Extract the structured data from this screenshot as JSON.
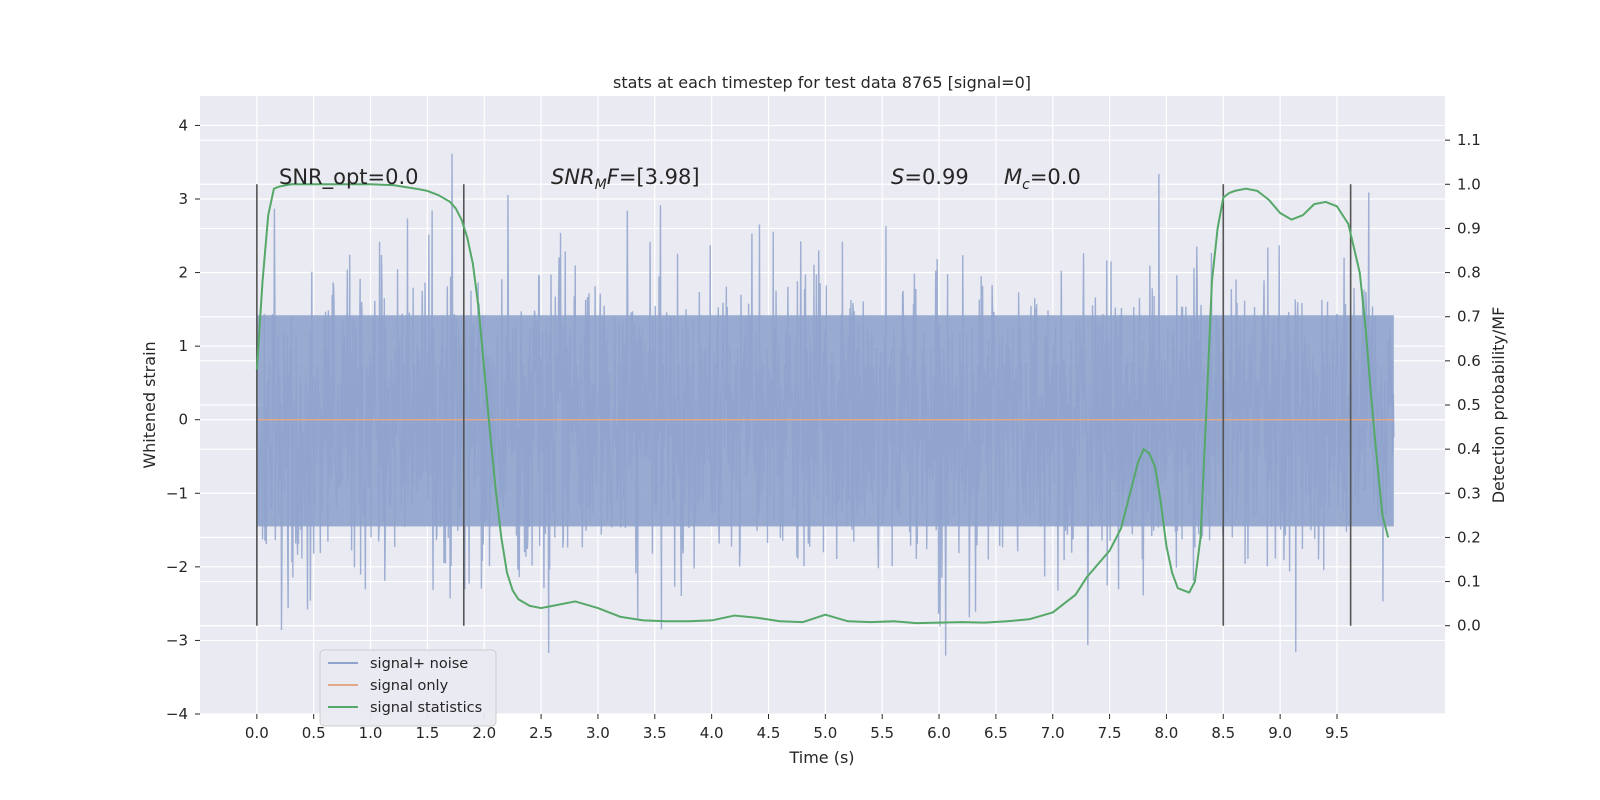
{
  "chart_data": {
    "type": "line",
    "title": "stats at each timestep for test data 8765 [signal=0]",
    "xlabel": "Time (s)",
    "ylabel": "Whitened strain",
    "y2label": "Detection probability/MF",
    "xlim": [
      -0.5,
      10.45
    ],
    "ylim": [
      -4.0,
      4.4
    ],
    "y2lim": [
      -0.2,
      1.2
    ],
    "x_ticks": [
      0.0,
      0.5,
      1.0,
      1.5,
      2.0,
      2.5,
      3.0,
      3.5,
      4.0,
      4.5,
      5.0,
      5.5,
      6.0,
      6.5,
      7.0,
      7.5,
      8.0,
      8.5,
      9.0,
      9.5
    ],
    "x_tick_labels": [
      "0.0",
      "0.5",
      "1.0",
      "1.5",
      "2.0",
      "2.5",
      "3.0",
      "3.5",
      "4.0",
      "4.5",
      "5.0",
      "5.5",
      "6.0",
      "6.5",
      "7.0",
      "7.5",
      "8.0",
      "8.5",
      "9.0",
      "9.5"
    ],
    "y_ticks": [
      -4,
      -3,
      -2,
      -1,
      0,
      1,
      2,
      3,
      4
    ],
    "y_tick_labels": [
      "−4",
      "−3",
      "−2",
      "−1",
      "0",
      "1",
      "2",
      "3",
      "4"
    ],
    "y2_ticks": [
      0.0,
      0.1,
      0.2,
      0.3,
      0.4,
      0.5,
      0.6,
      0.7,
      0.8,
      0.9,
      1.0,
      1.1
    ],
    "y2_tick_labels": [
      "0.0",
      "0.1",
      "0.2",
      "0.3",
      "0.4",
      "0.5",
      "0.6",
      "0.7",
      "0.8",
      "0.9",
      "1.0",
      "1.1"
    ],
    "grid": true,
    "legend": {
      "placement": "lower-left",
      "entries": [
        {
          "label": "signal+ noise",
          "color": "#8fa3cc"
        },
        {
          "label": "signal only",
          "color": "#e2a88a"
        },
        {
          "label": "signal statistics",
          "color": "#55a868"
        }
      ]
    },
    "annotations": {
      "snr_opt": "SNR_opt=0.0",
      "snr_mf_sym": "SNR",
      "snr_mf_sub": "M",
      "snr_mf_sym2": "F",
      "snr_mf_val": "=[3.98]",
      "s_sym": "S",
      "s_val": "=0.99",
      "mc_sym": "M",
      "mc_sub": "c",
      "mc_val": "=0.0"
    },
    "vertical_markers_x": [
      0.0,
      1.82,
      8.5,
      9.62
    ],
    "vertical_markers_range": [
      -2.8,
      3.2
    ],
    "noise_series": {
      "name": "signal+ noise",
      "x_range": [
        0.0,
        10.0
      ],
      "band_y": [
        -1.45,
        1.42
      ],
      "color": "#8fa3cc"
    },
    "signal_only": {
      "name": "signal only",
      "x": [
        0.0,
        10.0
      ],
      "y": [
        0.0,
        0.0
      ],
      "color": "#e2a88a"
    },
    "series": [
      {
        "name": "signal statistics",
        "axis": "y2",
        "color": "#55a868",
        "x": [
          0.0,
          0.05,
          0.1,
          0.15,
          0.2,
          0.3,
          0.4,
          0.5,
          0.6,
          0.8,
          1.0,
          1.2,
          1.4,
          1.5,
          1.6,
          1.7,
          1.75,
          1.8,
          1.85,
          1.9,
          1.95,
          2.0,
          2.05,
          2.1,
          2.15,
          2.2,
          2.25,
          2.3,
          2.4,
          2.5,
          2.6,
          2.8,
          3.0,
          3.2,
          3.4,
          3.6,
          3.8,
          4.0,
          4.2,
          4.4,
          4.6,
          4.8,
          5.0,
          5.2,
          5.4,
          5.6,
          5.8,
          6.0,
          6.2,
          6.4,
          6.6,
          6.8,
          7.0,
          7.2,
          7.3,
          7.4,
          7.5,
          7.6,
          7.7,
          7.75,
          7.8,
          7.85,
          7.9,
          7.95,
          8.0,
          8.05,
          8.1,
          8.2,
          8.25,
          8.3,
          8.35,
          8.4,
          8.45,
          8.5,
          8.55,
          8.6,
          8.7,
          8.8,
          8.9,
          9.0,
          9.1,
          9.2,
          9.3,
          9.4,
          9.5,
          9.6,
          9.7,
          9.75,
          9.8,
          9.85,
          9.9,
          9.95
        ],
        "y": [
          0.58,
          0.78,
          0.93,
          0.99,
          0.995,
          1.0,
          1.0,
          1.0,
          1.0,
          1.0,
          1.0,
          0.998,
          0.99,
          0.985,
          0.975,
          0.96,
          0.945,
          0.92,
          0.88,
          0.82,
          0.72,
          0.58,
          0.44,
          0.31,
          0.2,
          0.12,
          0.08,
          0.06,
          0.045,
          0.04,
          0.045,
          0.055,
          0.04,
          0.02,
          0.012,
          0.01,
          0.01,
          0.012,
          0.023,
          0.018,
          0.01,
          0.008,
          0.025,
          0.01,
          0.008,
          0.01,
          0.006,
          0.007,
          0.008,
          0.007,
          0.01,
          0.015,
          0.03,
          0.07,
          0.11,
          0.14,
          0.17,
          0.22,
          0.32,
          0.37,
          0.4,
          0.39,
          0.36,
          0.28,
          0.18,
          0.12,
          0.085,
          0.075,
          0.1,
          0.2,
          0.48,
          0.78,
          0.9,
          0.97,
          0.98,
          0.985,
          0.99,
          0.985,
          0.965,
          0.935,
          0.92,
          0.93,
          0.955,
          0.96,
          0.95,
          0.91,
          0.8,
          0.68,
          0.52,
          0.38,
          0.25,
          0.2
        ]
      }
    ]
  }
}
